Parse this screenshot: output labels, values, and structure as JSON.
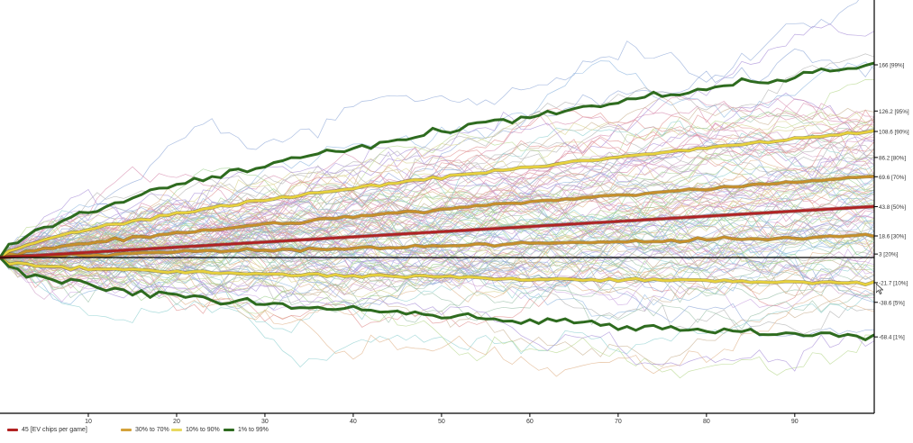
{
  "chart_data": {
    "type": "line",
    "title": "",
    "xlabel": "",
    "ylabel": "",
    "xlim": [
      0,
      99
    ],
    "ylim": [
      -170,
      210
    ],
    "x_ticks": [
      10,
      20,
      30,
      40,
      50,
      60,
      70,
      80,
      90
    ],
    "grid": false,
    "legend_position": "bottom",
    "baseline": 0,
    "sample_runs": 120,
    "percentile_labels": [
      {
        "value": 166,
        "label": "166 [99%]"
      },
      {
        "value": 126.2,
        "label": "126.2 [95%]"
      },
      {
        "value": 108.6,
        "label": "108.6 [90%]"
      },
      {
        "value": 86.2,
        "label": "86.2 [80%]"
      },
      {
        "value": 69.6,
        "label": "69.6 [70%]"
      },
      {
        "value": 43.8,
        "label": "43.8 [50%]"
      },
      {
        "value": 18.6,
        "label": "18.6 [30%]"
      },
      {
        "value": 3,
        "label": "3 [20%]"
      },
      {
        "value": -21.7,
        "label": "-21.7 [10%]"
      },
      {
        "value": -38.6,
        "label": "-38.6 [5%]"
      },
      {
        "value": -68.4,
        "label": "-68.4 [1%]"
      }
    ],
    "series": [
      {
        "name": "45 [EV chips per game]",
        "color": "#b22222",
        "endpoint": 44,
        "kind": "ev"
      },
      {
        "name": "30% to 70%",
        "color": "#c8902a",
        "upper": 69.6,
        "lower": 18.6,
        "kind": "band"
      },
      {
        "name": "10% to 90%",
        "color": "#e8d23c",
        "upper": 108.6,
        "lower": -21.7,
        "kind": "band"
      },
      {
        "name": "1% to 99%",
        "color": "#2e6b1f",
        "upper": 166,
        "lower": -68.4,
        "kind": "band"
      }
    ]
  },
  "legend": [
    {
      "label": "45 [EV chips per game]",
      "color": "#b22222"
    },
    {
      "label": "30% to 70%",
      "color": "#d4a23a"
    },
    {
      "label": "10% to 90%",
      "color": "#e8d860"
    },
    {
      "label": "1% to 99%",
      "color": "#2e6b1f"
    }
  ]
}
